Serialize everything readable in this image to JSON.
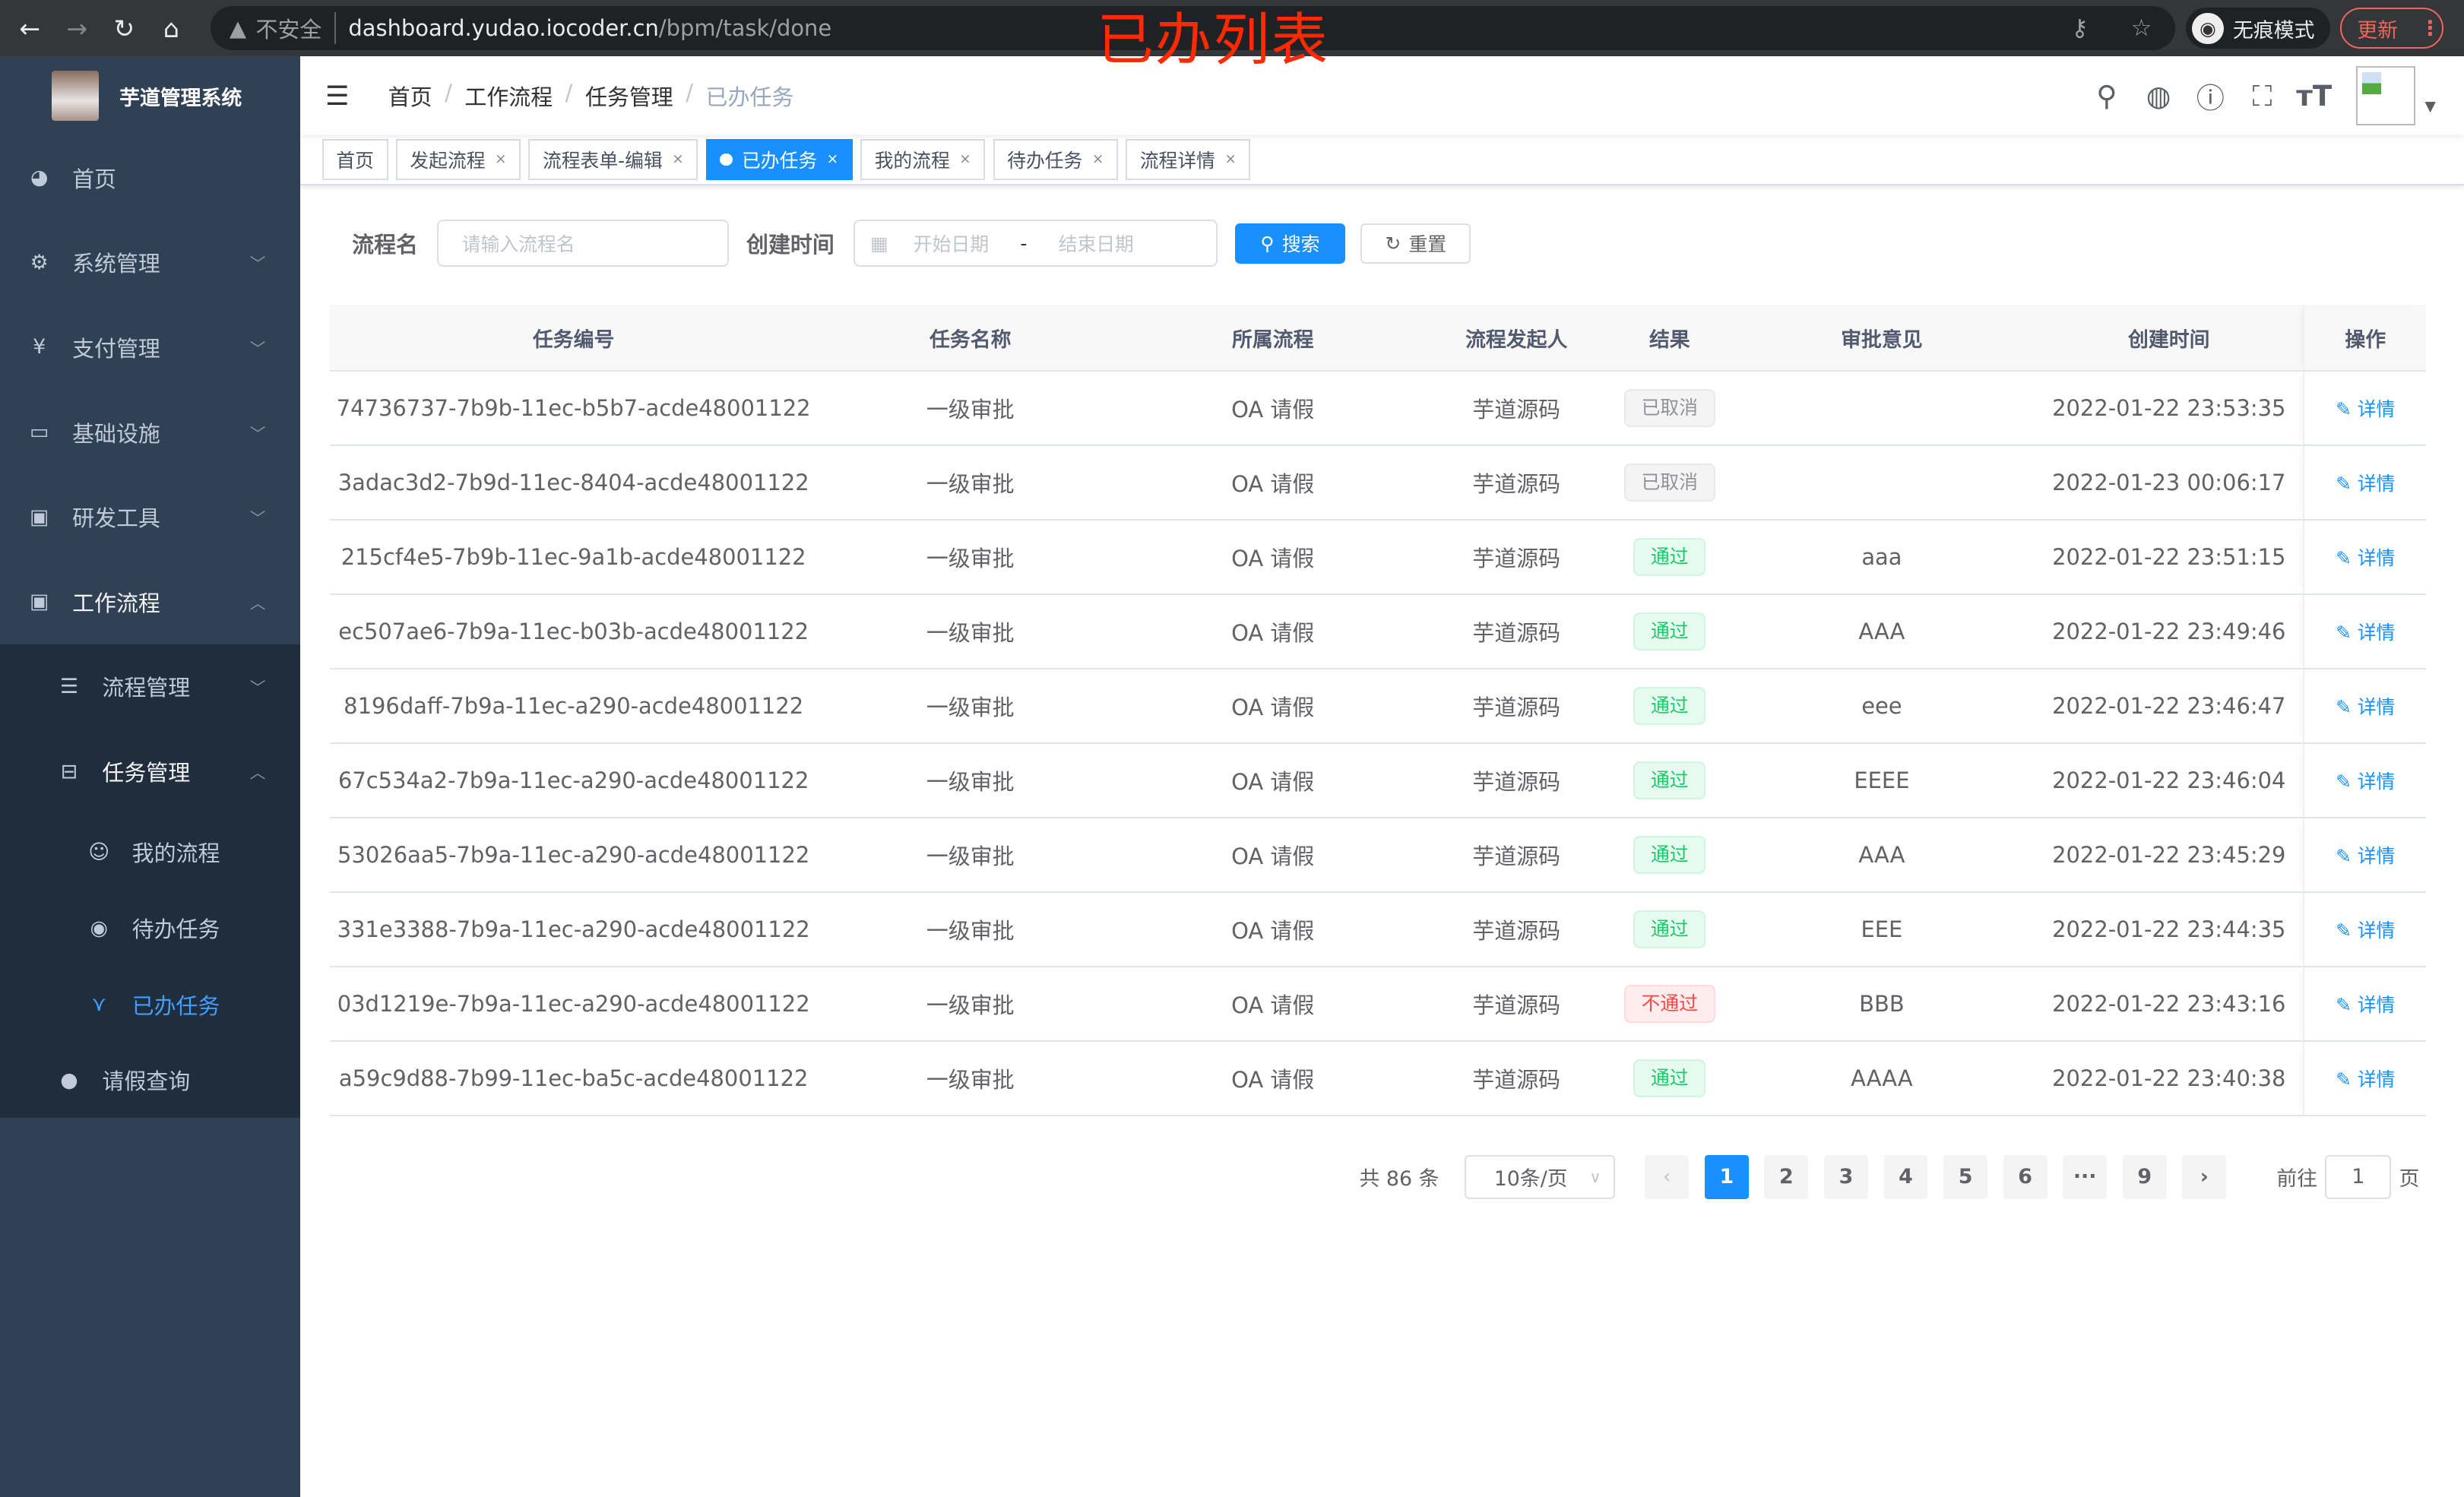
{
  "browser": {
    "security": "不安全",
    "url_host": "dashboard.yudao.iocoder.cn",
    "url_path": "/bpm/task/done",
    "incognito": "无痕模式",
    "update": "更新"
  },
  "annotation": "已办列表",
  "sidebar": {
    "title": "芋道管理系统",
    "items": [
      {
        "label": "首页",
        "icon": "dashboard-icon"
      },
      {
        "label": "系统管理",
        "icon": "gear-icon"
      },
      {
        "label": "支付管理",
        "icon": "yen-icon"
      },
      {
        "label": "基础设施",
        "icon": "monitor-icon"
      },
      {
        "label": "研发工具",
        "icon": "toolbox-icon"
      },
      {
        "label": "工作流程",
        "icon": "toolbox-icon"
      }
    ],
    "workflow_children": [
      {
        "label": "流程管理",
        "icon": "list-icon"
      },
      {
        "label": "任务管理",
        "icon": "tree-icon"
      }
    ],
    "task_children": [
      {
        "label": "我的流程",
        "icon": "chat-icon"
      },
      {
        "label": "待办任务",
        "icon": "eye-icon"
      },
      {
        "label": "已办任务",
        "icon": "done-icon",
        "active": true
      }
    ],
    "leave": {
      "label": "请假查询",
      "icon": "user-icon"
    }
  },
  "breadcrumb": [
    "首页",
    "工作流程",
    "任务管理",
    "已办任务"
  ],
  "tags": [
    "首页",
    "发起流程",
    "流程表单-编辑",
    "已办任务",
    "我的流程",
    "待办任务",
    "流程详情"
  ],
  "search": {
    "name_label": "流程名",
    "name_placeholder": "请输入流程名",
    "time_label": "创建时间",
    "start_placeholder": "开始日期",
    "range_sep": "-",
    "end_placeholder": "结束日期",
    "search_btn": "搜索",
    "reset_btn": "重置"
  },
  "table": {
    "headers": [
      "任务编号",
      "任务名称",
      "所属流程",
      "流程发起人",
      "结果",
      "审批意见",
      "创建时间",
      "操作"
    ],
    "detail_label": "详情",
    "rows": [
      {
        "id": "74736737-7b9b-11ec-b5b7-acde48001122",
        "name": "一级审批",
        "process": "OA 请假",
        "starter": "芋道源码",
        "result": "已取消",
        "result_type": "cancel",
        "comment": "",
        "time": "2022-01-22 23:53:35"
      },
      {
        "id": "3adac3d2-7b9d-11ec-8404-acde48001122",
        "name": "一级审批",
        "process": "OA 请假",
        "starter": "芋道源码",
        "result": "已取消",
        "result_type": "cancel",
        "comment": "",
        "time": "2022-01-23 00:06:17"
      },
      {
        "id": "215cf4e5-7b9b-11ec-9a1b-acde48001122",
        "name": "一级审批",
        "process": "OA 请假",
        "starter": "芋道源码",
        "result": "通过",
        "result_type": "pass",
        "comment": "aaa",
        "time": "2022-01-22 23:51:15"
      },
      {
        "id": "ec507ae6-7b9a-11ec-b03b-acde48001122",
        "name": "一级审批",
        "process": "OA 请假",
        "starter": "芋道源码",
        "result": "通过",
        "result_type": "pass",
        "comment": "AAA",
        "time": "2022-01-22 23:49:46"
      },
      {
        "id": "8196daff-7b9a-11ec-a290-acde48001122",
        "name": "一级审批",
        "process": "OA 请假",
        "starter": "芋道源码",
        "result": "通过",
        "result_type": "pass",
        "comment": "eee",
        "time": "2022-01-22 23:46:47"
      },
      {
        "id": "67c534a2-7b9a-11ec-a290-acde48001122",
        "name": "一级审批",
        "process": "OA 请假",
        "starter": "芋道源码",
        "result": "通过",
        "result_type": "pass",
        "comment": "EEEE",
        "time": "2022-01-22 23:46:04"
      },
      {
        "id": "53026aa5-7b9a-11ec-a290-acde48001122",
        "name": "一级审批",
        "process": "OA 请假",
        "starter": "芋道源码",
        "result": "通过",
        "result_type": "pass",
        "comment": "AAA",
        "time": "2022-01-22 23:45:29"
      },
      {
        "id": "331e3388-7b9a-11ec-a290-acde48001122",
        "name": "一级审批",
        "process": "OA 请假",
        "starter": "芋道源码",
        "result": "通过",
        "result_type": "pass",
        "comment": "EEE",
        "time": "2022-01-22 23:44:35"
      },
      {
        "id": "03d1219e-7b9a-11ec-a290-acde48001122",
        "name": "一级审批",
        "process": "OA 请假",
        "starter": "芋道源码",
        "result": "不通过",
        "result_type": "fail",
        "comment": "BBB",
        "time": "2022-01-22 23:43:16"
      },
      {
        "id": "a59c9d88-7b99-11ec-ba5c-acde48001122",
        "name": "一级审批",
        "process": "OA 请假",
        "starter": "芋道源码",
        "result": "通过",
        "result_type": "pass",
        "comment": "AAAA",
        "time": "2022-01-22 23:40:38"
      }
    ]
  },
  "pagination": {
    "total": "共 86 条",
    "page_size": "10条/页",
    "pages": [
      "1",
      "2",
      "3",
      "4",
      "5",
      "6",
      "···",
      "9"
    ],
    "current": "1",
    "goto_label": "前往",
    "goto_value": "1",
    "goto_suffix": "页"
  },
  "colors": {
    "primary": "#1890ff",
    "sidebar": "#304156",
    "pass": "#13ce66",
    "fail": "#ff4949",
    "annotation": "#ff2a00"
  }
}
